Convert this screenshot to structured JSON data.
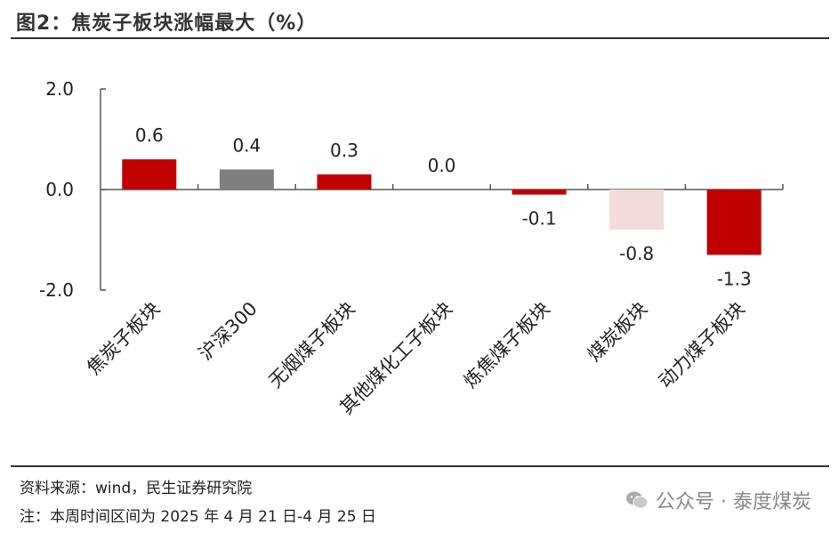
{
  "header": {
    "title": "图2：焦炭子板块涨幅最大（%）"
  },
  "chart_data": {
    "type": "bar",
    "categories": [
      "焦炭子板块",
      "沪深300",
      "无烟煤子板块",
      "其他煤化工子板块",
      "炼焦煤子板块",
      "煤炭板块",
      "动力煤子板块"
    ],
    "values": [
      0.6,
      0.4,
      0.3,
      0.0,
      -0.1,
      -0.8,
      -1.3
    ],
    "data_labels": [
      "0.6",
      "0.4",
      "0.3",
      "0.0",
      "-0.1",
      "-0.8",
      "-1.3"
    ],
    "colors": [
      "#c00000",
      "#7f7f7f",
      "#c00000",
      "#c00000",
      "#c00000",
      "#f2dcdb",
      "#c00000"
    ],
    "ylim": [
      -2.0,
      2.0
    ],
    "yticks": [
      2.0,
      0.0,
      -2.0
    ],
    "ytick_labels": [
      "2.0",
      "0.0",
      "-2.0"
    ],
    "xlabel": "",
    "ylabel": "",
    "grid": false,
    "legend": "none"
  },
  "footer": {
    "source": "资料来源：wind，民生证券研究院",
    "note": "注：本周时间区间为 2025 年 4 月 21 日-4 月 25 日",
    "watermark": "公众号 · 泰度煤炭",
    "watermark_icon": "wechat-icon"
  }
}
